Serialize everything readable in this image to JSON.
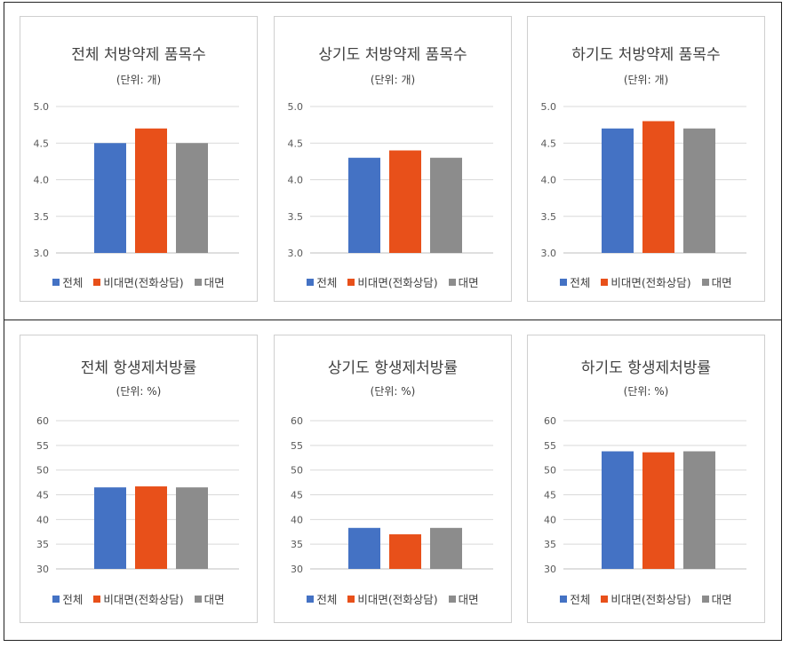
{
  "legend": [
    "전체",
    "비대면(전화상담)",
    "대면"
  ],
  "colors": [
    "#4472C4",
    "#E8501A",
    "#8C8C8C"
  ],
  "chart_data": [
    {
      "type": "bar",
      "title": "전체 처방약제 품목수",
      "unit": "(단위: 개)",
      "ylim": [
        3.0,
        5.0
      ],
      "yticks": [
        "3.0",
        "3.5",
        "4.0",
        "4.5",
        "5.0"
      ],
      "values": [
        4.5,
        4.7,
        4.5
      ]
    },
    {
      "type": "bar",
      "title": "상기도 처방약제 품목수",
      "unit": "(단위: 개)",
      "ylim": [
        3.0,
        5.0
      ],
      "yticks": [
        "3.0",
        "3.5",
        "4.0",
        "4.5",
        "5.0"
      ],
      "values": [
        4.3,
        4.4,
        4.3
      ]
    },
    {
      "type": "bar",
      "title": "하기도 처방약제 품목수",
      "unit": "(단위: 개)",
      "ylim": [
        3.0,
        5.0
      ],
      "yticks": [
        "3.0",
        "3.5",
        "4.0",
        "4.5",
        "5.0"
      ],
      "values": [
        4.7,
        4.8,
        4.7
      ]
    },
    {
      "type": "bar",
      "title": "전체 항생제처방률",
      "unit": "(단위: %)",
      "ylim": [
        30,
        60
      ],
      "yticks": [
        "30",
        "35",
        "40",
        "45",
        "50",
        "55",
        "60"
      ],
      "values": [
        46.5,
        46.7,
        46.5
      ]
    },
    {
      "type": "bar",
      "title": "상기도 항생제처방률",
      "unit": "(단위: %)",
      "ylim": [
        30,
        60
      ],
      "yticks": [
        "30",
        "35",
        "40",
        "45",
        "50",
        "55",
        "60"
      ],
      "values": [
        38.3,
        37.0,
        38.3
      ]
    },
    {
      "type": "bar",
      "title": "하기도 항생제처방률",
      "unit": "(단위: %)",
      "ylim": [
        30,
        60
      ],
      "yticks": [
        "30",
        "35",
        "40",
        "45",
        "50",
        "55",
        "60"
      ],
      "values": [
        53.8,
        53.6,
        53.8
      ]
    }
  ]
}
